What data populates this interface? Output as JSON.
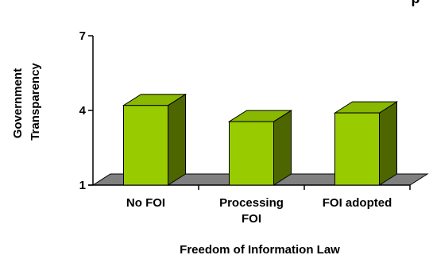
{
  "chart_data": {
    "type": "bar",
    "title": "p",
    "xlabel": "Freedom of Information Law",
    "ylabel": [
      "Government",
      "Transparency"
    ],
    "categories": [
      [
        "No FOI"
      ],
      [
        "Processing",
        "FOI"
      ],
      [
        "FOI adopted"
      ]
    ],
    "values": [
      4.2,
      3.55,
      3.9
    ],
    "ylim": [
      1,
      7
    ],
    "yticks": [
      "1",
      "4",
      "7"
    ],
    "grid": false,
    "legend": "none",
    "colors": {
      "bar_front": "#99cc00",
      "bar_top": "#88b800",
      "bar_side": "#4d6600",
      "floor": "#808080",
      "outline": "#000000"
    }
  }
}
